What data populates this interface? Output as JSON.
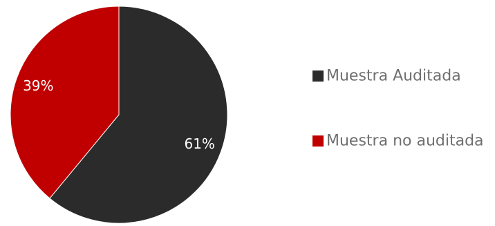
{
  "chart_data": {
    "type": "pie",
    "title": "",
    "series": [
      {
        "categories": [
          "Muestra Auditada",
          "Muestra no auditada"
        ],
        "values": [
          61,
          39
        ],
        "colors": [
          "#2b2b2b",
          "#c00000"
        ],
        "data_labels": [
          "61%",
          "39%"
        ]
      }
    ],
    "legend": {
      "position": "right",
      "items": [
        {
          "label": "Muestra Auditada",
          "color": "#2b2b2b"
        },
        {
          "label": "Muestra no auditada",
          "color": "#c00000"
        }
      ]
    },
    "start_angle": "12-o'clock",
    "direction": "clockwise"
  }
}
